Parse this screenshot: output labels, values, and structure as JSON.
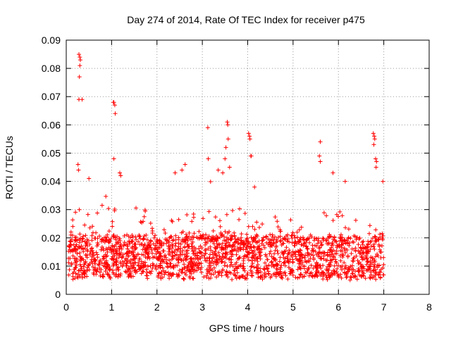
{
  "chart_data": {
    "type": "scatter",
    "title": "Day 274 of 2014, Rate Of TEC Index for receiver p475",
    "xlabel": "GPS time / hours",
    "ylabel": "ROTI / TECUs",
    "xlim": [
      0,
      8
    ],
    "ylim": [
      0,
      0.09
    ],
    "x_ticks": [
      "0",
      "1",
      "2",
      "3",
      "4",
      "5",
      "6",
      "7",
      "8"
    ],
    "y_ticks": [
      "0",
      "0.01",
      "0.02",
      "0.03",
      "0.04",
      "0.05",
      "0.06",
      "0.07",
      "0.08",
      "0.09"
    ],
    "grid": true,
    "marker": "+",
    "color": "#ff0000",
    "series": [
      {
        "name": "ROTI",
        "x_range": [
          0.05,
          7.0
        ],
        "n_points": 2600,
        "typical_range": [
          0.005,
          0.02
        ],
        "peak_points": [
          [
            0.28,
            0.085
          ],
          [
            0.3,
            0.084
          ],
          [
            0.31,
            0.083
          ],
          [
            0.3,
            0.081
          ],
          [
            0.29,
            0.077
          ],
          [
            0.28,
            0.069
          ],
          [
            0.35,
            0.069
          ],
          [
            0.26,
            0.046
          ],
          [
            0.27,
            0.044
          ],
          [
            0.5,
            0.041
          ],
          [
            1.04,
            0.068
          ],
          [
            1.05,
            0.068
          ],
          [
            1.07,
            0.067
          ],
          [
            1.08,
            0.064
          ],
          [
            1.05,
            0.048
          ],
          [
            1.18,
            0.043
          ],
          [
            1.2,
            0.042
          ],
          [
            3.12,
            0.059
          ],
          [
            3.55,
            0.061
          ],
          [
            3.56,
            0.06
          ],
          [
            3.57,
            0.055
          ],
          [
            3.52,
            0.052
          ],
          [
            3.5,
            0.048
          ],
          [
            3.6,
            0.045
          ],
          [
            3.13,
            0.048
          ],
          [
            4.02,
            0.057
          ],
          [
            4.04,
            0.056
          ],
          [
            4.05,
            0.055
          ],
          [
            4.07,
            0.049
          ],
          [
            4.08,
            0.049
          ],
          [
            5.6,
            0.054
          ],
          [
            5.58,
            0.049
          ],
          [
            5.6,
            0.047
          ],
          [
            6.77,
            0.057
          ],
          [
            6.79,
            0.056
          ],
          [
            6.8,
            0.055
          ],
          [
            6.78,
            0.053
          ],
          [
            6.82,
            0.048
          ],
          [
            6.84,
            0.047
          ],
          [
            6.83,
            0.045
          ],
          [
            6.98,
            0.04
          ],
          [
            5.88,
            0.043
          ],
          [
            6.15,
            0.04
          ],
          [
            2.55,
            0.044
          ],
          [
            2.62,
            0.046
          ],
          [
            2.4,
            0.043
          ],
          [
            3.35,
            0.044
          ],
          [
            3.45,
            0.043
          ],
          [
            4.15,
            0.038
          ]
        ]
      }
    ]
  }
}
